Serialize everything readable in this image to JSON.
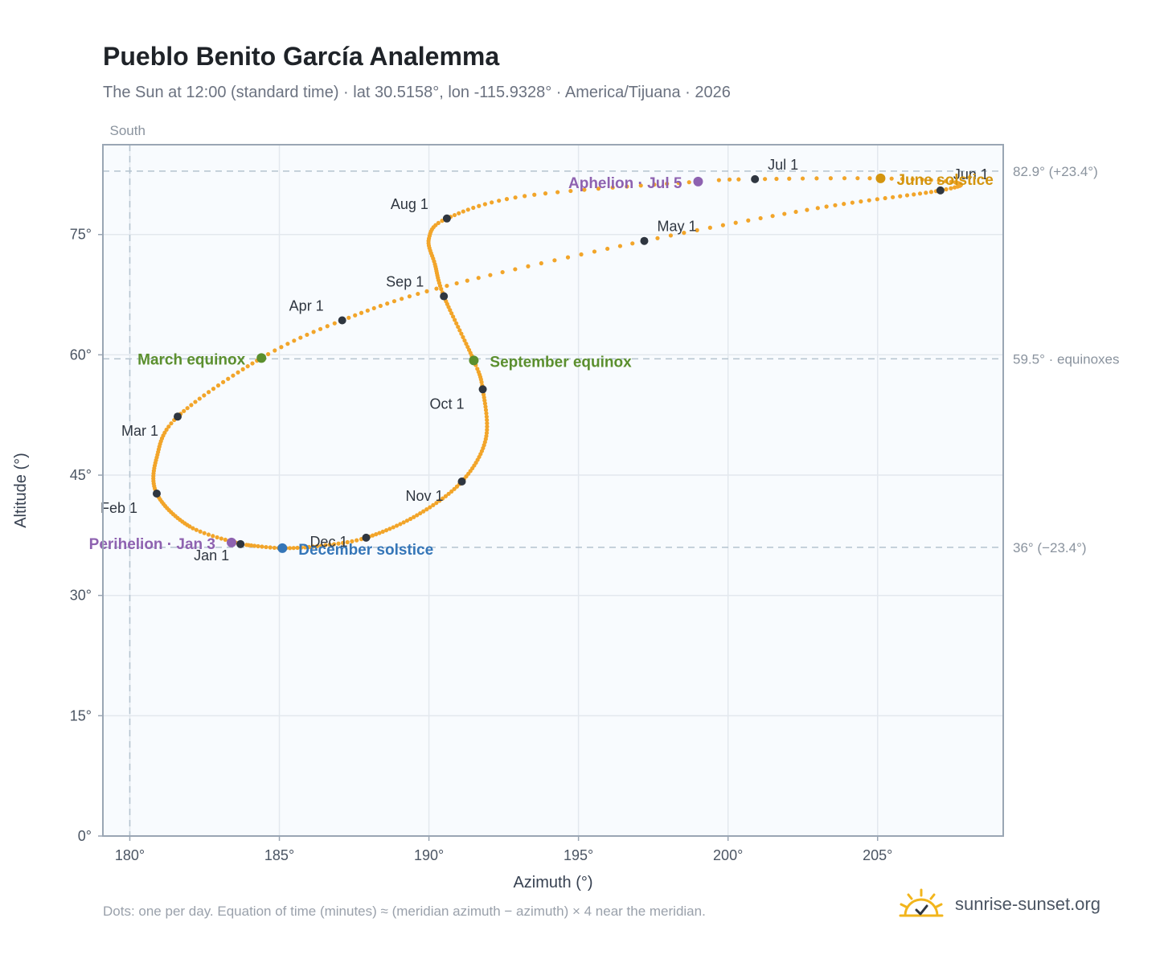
{
  "header": {
    "title": "Pueblo Benito García Analemma",
    "subtitle": "The Sun at 12:00 (standard time) · lat 30.5158°, lon -115.9328° · America/Tijuana · 2026"
  },
  "footer": {
    "note": "Dots: one per day. Equation of time (minutes) ≈ (meridian azimuth − azimuth) × 4 near the meridian.",
    "brand": "sunrise-sunset.org"
  },
  "colors": {
    "curve": "#f2a52a",
    "month_marker": "#2f3640",
    "equinox": "#5b8f2e",
    "solstice_june": "#d4950f",
    "solstice_december": "#3576b8",
    "perihelion_aphelion": "#8e62b0",
    "reference_line": "#b4c3cf",
    "grid": "#e3e8ee",
    "plot_background": "#f8fbfe"
  },
  "chart_data": {
    "type": "scatter",
    "title": "Pueblo Benito García Analemma",
    "xlabel": "Azimuth (°)",
    "ylabel": "Altitude (°)",
    "xlim": [
      179.1,
      209.2
    ],
    "ylim": [
      0,
      86.2
    ],
    "xticks": [
      180,
      185,
      190,
      195,
      200,
      205
    ],
    "xtick_labels": [
      "180°",
      "185°",
      "190°",
      "195°",
      "200°",
      "205°"
    ],
    "yticks": [
      0,
      15,
      30,
      45,
      60,
      75
    ],
    "ytick_labels": [
      "0°",
      "15°",
      "30°",
      "45°",
      "60°",
      "75°"
    ],
    "grid": true,
    "meridian": {
      "azimuth": 180,
      "label": "South"
    },
    "reference_lines": [
      {
        "altitude": 82.9,
        "label": "82.9° (+23.4°)"
      },
      {
        "altitude": 59.5,
        "label": "59.5° · equinoxes"
      },
      {
        "altitude": 36.0,
        "label": "36° (−23.4°)"
      }
    ],
    "analemma_anchors": [
      {
        "day": 1,
        "az": 183.7,
        "alt": 36.4
      },
      {
        "day": 15,
        "az": 182.0,
        "alt": 38.6
      },
      {
        "day": 32,
        "az": 180.9,
        "alt": 42.7
      },
      {
        "day": 46,
        "az": 180.9,
        "alt": 47.2
      },
      {
        "day": 60,
        "az": 181.6,
        "alt": 52.3
      },
      {
        "day": 79,
        "az": 184.4,
        "alt": 59.6
      },
      {
        "day": 91,
        "az": 187.1,
        "alt": 64.3
      },
      {
        "day": 105,
        "az": 190.6,
        "alt": 68.6
      },
      {
        "day": 121,
        "az": 197.2,
        "alt": 74.2
      },
      {
        "day": 135,
        "az": 203.0,
        "alt": 78.3
      },
      {
        "day": 152,
        "az": 207.1,
        "alt": 80.5
      },
      {
        "day": 163,
        "az": 207.6,
        "alt": 81.5
      },
      {
        "day": 172,
        "az": 205.1,
        "alt": 82.0
      },
      {
        "day": 182,
        "az": 200.9,
        "alt": 81.9
      },
      {
        "day": 186,
        "az": 199.0,
        "alt": 81.6
      },
      {
        "day": 200,
        "az": 193.2,
        "alt": 79.8
      },
      {
        "day": 213,
        "az": 190.6,
        "alt": 77.0
      },
      {
        "day": 222,
        "az": 190.0,
        "alt": 74.5
      },
      {
        "day": 232,
        "az": 190.2,
        "alt": 71.3
      },
      {
        "day": 244,
        "az": 190.5,
        "alt": 67.3
      },
      {
        "day": 265,
        "az": 191.5,
        "alt": 59.3
      },
      {
        "day": 274,
        "az": 191.8,
        "alt": 55.7
      },
      {
        "day": 290,
        "az": 191.9,
        "alt": 49.5
      },
      {
        "day": 305,
        "az": 191.1,
        "alt": 44.2
      },
      {
        "day": 320,
        "az": 189.6,
        "alt": 40.0
      },
      {
        "day": 335,
        "az": 187.9,
        "alt": 37.2
      },
      {
        "day": 345,
        "az": 186.4,
        "alt": 36.2
      },
      {
        "day": 355,
        "az": 185.1,
        "alt": 35.9
      },
      {
        "day": 365,
        "az": 183.9,
        "alt": 36.3
      }
    ],
    "month_markers": [
      {
        "label": "Jan 1",
        "az": 183.7,
        "alt": 36.4
      },
      {
        "label": "Feb 1",
        "az": 180.9,
        "alt": 42.7
      },
      {
        "label": "Mar 1",
        "az": 181.6,
        "alt": 52.3
      },
      {
        "label": "Apr 1",
        "az": 187.1,
        "alt": 64.3
      },
      {
        "label": "May 1",
        "az": 197.2,
        "alt": 74.2
      },
      {
        "label": "Jun 1",
        "az": 207.1,
        "alt": 80.5
      },
      {
        "label": "Jul 1",
        "az": 200.9,
        "alt": 81.9
      },
      {
        "label": "Aug 1",
        "az": 190.6,
        "alt": 77.0
      },
      {
        "label": "Sep 1",
        "az": 190.5,
        "alt": 67.3
      },
      {
        "label": "Oct 1",
        "az": 191.8,
        "alt": 55.7
      },
      {
        "label": "Nov 1",
        "az": 191.1,
        "alt": 44.2
      },
      {
        "label": "Dec 1",
        "az": 187.9,
        "alt": 37.2
      }
    ],
    "events": [
      {
        "label": "March equinox",
        "az": 184.4,
        "alt": 59.6,
        "kind": "equinox"
      },
      {
        "label": "September equinox",
        "az": 191.5,
        "alt": 59.3,
        "kind": "equinox"
      },
      {
        "label": "June solstice",
        "az": 205.1,
        "alt": 82.0,
        "kind": "solstice_june"
      },
      {
        "label": "December solstice",
        "az": 185.1,
        "alt": 35.9,
        "kind": "solstice_december"
      },
      {
        "label": "Perihelion · Jan 3",
        "az": 183.4,
        "alt": 36.6,
        "kind": "perihelion_aphelion"
      },
      {
        "label": "Aphelion · Jul 5",
        "az": 199.0,
        "alt": 81.6,
        "kind": "perihelion_aphelion"
      }
    ]
  }
}
